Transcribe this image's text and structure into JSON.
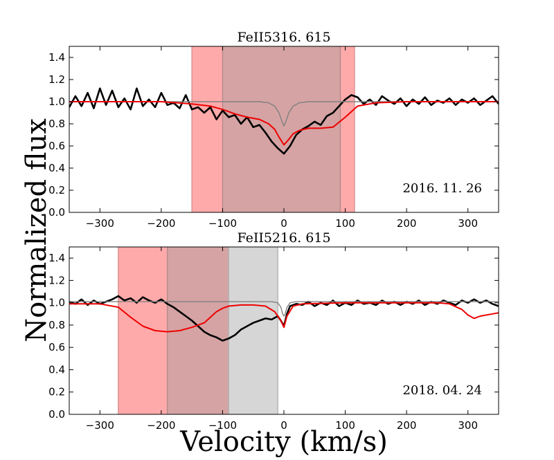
{
  "figure": {
    "ylabel": "Normalized flux",
    "xlabel": "Velocity (km/s)"
  },
  "chart_data": [
    {
      "type": "line",
      "title": "FeII5316. 615",
      "annotation": "2016. 11. 26",
      "xlim": [
        -350,
        350
      ],
      "ylim": [
        0.0,
        1.5
      ],
      "xticks": [
        -300,
        -200,
        -100,
        0,
        100,
        200,
        300
      ],
      "yticks": [
        0.0,
        0.2,
        0.4,
        0.6,
        0.8,
        1.0,
        1.2,
        1.4
      ],
      "shaded_regions": [
        {
          "name": "outer",
          "x": [
            -150,
            115
          ],
          "color": "#ffaaaa"
        },
        {
          "name": "inner",
          "x": [
            -100,
            92
          ],
          "color": "#d5a3a3"
        }
      ],
      "series": [
        {
          "name": "observed spectrum",
          "color": "#000000",
          "x": [
            -350,
            -340,
            -330,
            -320,
            -310,
            -300,
            -290,
            -280,
            -270,
            -260,
            -250,
            -240,
            -230,
            -220,
            -210,
            -200,
            -190,
            -180,
            -170,
            -160,
            -150,
            -140,
            -130,
            -120,
            -110,
            -100,
            -90,
            -80,
            -70,
            -60,
            -50,
            -40,
            -30,
            -20,
            -10,
            0,
            10,
            20,
            30,
            40,
            50,
            60,
            70,
            80,
            90,
            100,
            110,
            120,
            130,
            140,
            150,
            160,
            170,
            180,
            190,
            200,
            210,
            220,
            230,
            240,
            250,
            260,
            270,
            280,
            290,
            300,
            310,
            320,
            330,
            340,
            350
          ],
          "y": [
            0.95,
            1.05,
            0.96,
            1.08,
            0.94,
            1.12,
            0.97,
            1.1,
            0.95,
            1.03,
            0.93,
            1.12,
            0.96,
            1.02,
            0.95,
            1.08,
            0.97,
            0.99,
            0.94,
            1.06,
            0.93,
            0.95,
            0.9,
            0.95,
            0.84,
            0.92,
            0.86,
            0.88,
            0.8,
            0.86,
            0.77,
            0.79,
            0.72,
            0.64,
            0.58,
            0.53,
            0.6,
            0.7,
            0.75,
            0.78,
            0.82,
            0.79,
            0.87,
            0.9,
            0.96,
            1.02,
            1.06,
            1.04,
            0.98,
            1.02,
            0.97,
            1.05,
            1.01,
            0.98,
            1.03,
            0.96,
            1.02,
            0.98,
            1.04,
            0.97,
            1.01,
            0.99,
            1.03,
            0.97,
            1.02,
            0.99,
            1.03,
            0.97,
            1.01,
            1.05,
            0.98
          ]
        },
        {
          "name": "telluric model",
          "color": "#808080",
          "x": [
            -350,
            -100,
            -40,
            -25,
            -15,
            -8,
            -3,
            0,
            3,
            8,
            15,
            25,
            40,
            100,
            350
          ],
          "y": [
            1.0,
            1.0,
            1.0,
            0.99,
            0.96,
            0.9,
            0.82,
            0.78,
            0.82,
            0.9,
            0.96,
            0.99,
            1.0,
            1.0,
            1.0
          ]
        },
        {
          "name": "fit",
          "color": "#ee0000",
          "x": [
            -350,
            -200,
            -150,
            -120,
            -100,
            -80,
            -60,
            -40,
            -25,
            -15,
            -8,
            0,
            8,
            15,
            25,
            40,
            60,
            80,
            100,
            120,
            150,
            200,
            350
          ],
          "y": [
            1.0,
            1.0,
            0.98,
            0.96,
            0.93,
            0.89,
            0.86,
            0.84,
            0.8,
            0.75,
            0.68,
            0.61,
            0.66,
            0.71,
            0.74,
            0.76,
            0.76,
            0.77,
            0.86,
            0.96,
            0.99,
            1.0,
            1.0
          ]
        }
      ]
    },
    {
      "type": "line",
      "title": "FeII5216. 615",
      "annotation": "2018. 04. 24",
      "xlim": [
        -350,
        350
      ],
      "ylim": [
        0.0,
        1.5
      ],
      "xticks": [
        -300,
        -200,
        -100,
        0,
        100,
        200,
        300
      ],
      "yticks": [
        0.0,
        0.2,
        0.4,
        0.6,
        0.8,
        1.0,
        1.2,
        1.4
      ],
      "shaded_regions": [
        {
          "name": "outer",
          "x": [
            -270,
            -190
          ],
          "color": "#ffaaaa"
        },
        {
          "name": "inner",
          "x": [
            -190,
            -90
          ],
          "color": "#d5a3a3"
        },
        {
          "name": "grey",
          "x": [
            -90,
            -10
          ],
          "color": "#d6d6d6"
        }
      ],
      "series": [
        {
          "name": "observed spectrum",
          "color": "#000000",
          "x": [
            -350,
            -340,
            -330,
            -320,
            -310,
            -300,
            -290,
            -280,
            -270,
            -260,
            -250,
            -240,
            -230,
            -220,
            -210,
            -200,
            -190,
            -180,
            -170,
            -160,
            -150,
            -140,
            -130,
            -120,
            -110,
            -100,
            -90,
            -80,
            -70,
            -60,
            -50,
            -40,
            -30,
            -20,
            -10,
            -5,
            0,
            5,
            10,
            20,
            30,
            40,
            50,
            60,
            70,
            80,
            90,
            100,
            110,
            120,
            130,
            140,
            150,
            160,
            170,
            180,
            190,
            200,
            210,
            220,
            230,
            240,
            250,
            260,
            270,
            280,
            290,
            300,
            310,
            320,
            330,
            340,
            350
          ],
          "y": [
            1.01,
            0.99,
            1.03,
            0.98,
            1.02,
            0.99,
            1.01,
            1.03,
            1.06,
            1.02,
            1.04,
            1.0,
            1.05,
            1.02,
            1.0,
            1.03,
            0.99,
            0.96,
            0.92,
            0.88,
            0.84,
            0.79,
            0.74,
            0.71,
            0.69,
            0.66,
            0.68,
            0.71,
            0.76,
            0.79,
            0.82,
            0.84,
            0.86,
            0.85,
            0.88,
            0.84,
            0.79,
            0.9,
            0.97,
            0.99,
            0.98,
            1.01,
            0.97,
            1.0,
            0.98,
            1.02,
            0.97,
            1.0,
            0.98,
            1.02,
            0.99,
            1.0,
            0.98,
            1.02,
            0.99,
            1.01,
            0.98,
            1.01,
            0.99,
            1.02,
            0.98,
            1.01,
            0.99,
            1.02,
            1.0,
            0.98,
            1.02,
            1.0,
            1.03,
            1.0,
            1.02,
            0.99,
            0.97
          ]
        },
        {
          "name": "telluric model",
          "color": "#808080",
          "x": [
            -350,
            -20,
            -10,
            -5,
            -2,
            0,
            2,
            5,
            10,
            20,
            350
          ],
          "y": [
            1.01,
            1.01,
            1.0,
            0.96,
            0.9,
            0.88,
            0.9,
            0.96,
            1.0,
            1.01,
            1.01
          ]
        },
        {
          "name": "fit",
          "color": "#ee0000",
          "x": [
            -350,
            -300,
            -270,
            -250,
            -230,
            -210,
            -190,
            -170,
            -150,
            -130,
            -110,
            -100,
            -90,
            -70,
            -50,
            -30,
            -15,
            -5,
            0,
            5,
            15,
            30,
            100,
            200,
            250,
            270,
            290,
            300,
            310,
            320,
            340,
            350
          ],
          "y": [
            0.99,
            0.99,
            0.96,
            0.87,
            0.79,
            0.75,
            0.74,
            0.75,
            0.78,
            0.82,
            0.92,
            0.95,
            0.97,
            0.98,
            0.98,
            0.97,
            0.92,
            0.84,
            0.78,
            0.88,
            0.97,
            0.99,
            1.0,
            1.0,
            1.0,
            0.99,
            0.94,
            0.89,
            0.86,
            0.88,
            0.9,
            0.91
          ]
        }
      ]
    }
  ]
}
